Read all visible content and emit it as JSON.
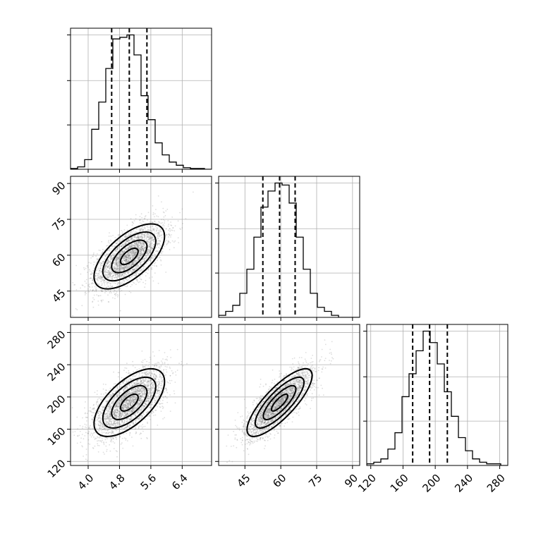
{
  "chart_data": {
    "type": "corner",
    "title": "",
    "parameters": [
      {
        "tick_labels": [
          "4.0",
          "4.8",
          "5.6",
          "6.4"
        ],
        "ticks": [
          4.0,
          4.8,
          5.6,
          6.4
        ],
        "range": [
          3.55,
          7.15
        ],
        "quantiles": [
          4.6,
          5.05,
          5.5
        ],
        "hist_edges": [
          3.55,
          3.73,
          3.91,
          4.09,
          4.27,
          4.45,
          4.63,
          4.81,
          4.99,
          5.17,
          5.35,
          5.53,
          5.71,
          5.89,
          6.07,
          6.25,
          6.43,
          6.61,
          6.79,
          6.97,
          7.15
        ],
        "hist_counts": [
          1,
          3,
          12,
          50,
          84,
          126,
          163,
          165,
          168,
          143,
          92,
          62,
          33,
          18,
          9,
          5,
          2,
          1,
          1,
          0
        ]
      },
      {
        "tick_labels": [
          "45",
          "60",
          "75",
          "90"
        ],
        "ticks": [
          45,
          60,
          75,
          90
        ],
        "range": [
          34,
          93
        ],
        "quantiles": [
          52.5,
          59.5,
          66.0
        ],
        "hist_edges": [
          34,
          36.95,
          39.9,
          42.85,
          45.8,
          48.75,
          51.7,
          54.65,
          57.6,
          60.55,
          63.5,
          66.45,
          69.4,
          72.35,
          75.3,
          78.25,
          81.2,
          84.15,
          87.1,
          90.05,
          93
        ],
        "hist_counts": [
          1,
          3,
          6,
          12,
          24,
          40,
          55,
          63,
          67,
          66,
          57,
          40,
          24,
          12,
          5,
          3,
          1,
          0,
          0,
          0
        ]
      },
      {
        "tick_labels": [
          "120",
          "160",
          "200",
          "240",
          "280"
        ],
        "ticks": [
          120,
          160,
          200,
          240,
          280
        ],
        "range": [
          115,
          290
        ],
        "quantiles": [
          172,
          193,
          215
        ],
        "hist_edges": [
          115,
          123.75,
          132.5,
          141.25,
          150,
          158.75,
          167.5,
          176.25,
          185,
          193.75,
          202.5,
          211.25,
          220,
          228.75,
          237.5,
          246.25,
          255,
          263.75,
          272.5,
          281.25,
          290
        ],
        "hist_counts": [
          1,
          2,
          4,
          10,
          20,
          42,
          56,
          70,
          82,
          75,
          62,
          45,
          30,
          17,
          9,
          4,
          2,
          1,
          1,
          0
        ]
      }
    ],
    "correlations": {
      "1_0": 0.62,
      "2_0": 0.62,
      "2_1": 0.8
    },
    "sigmas": [
      0.45,
      6.8,
      21
    ],
    "means": [
      5.05,
      59.5,
      193
    ],
    "samples_per_panel": 3000,
    "contour_levels_sigma": [
      0.5,
      1.0,
      1.5,
      2.0
    ]
  }
}
